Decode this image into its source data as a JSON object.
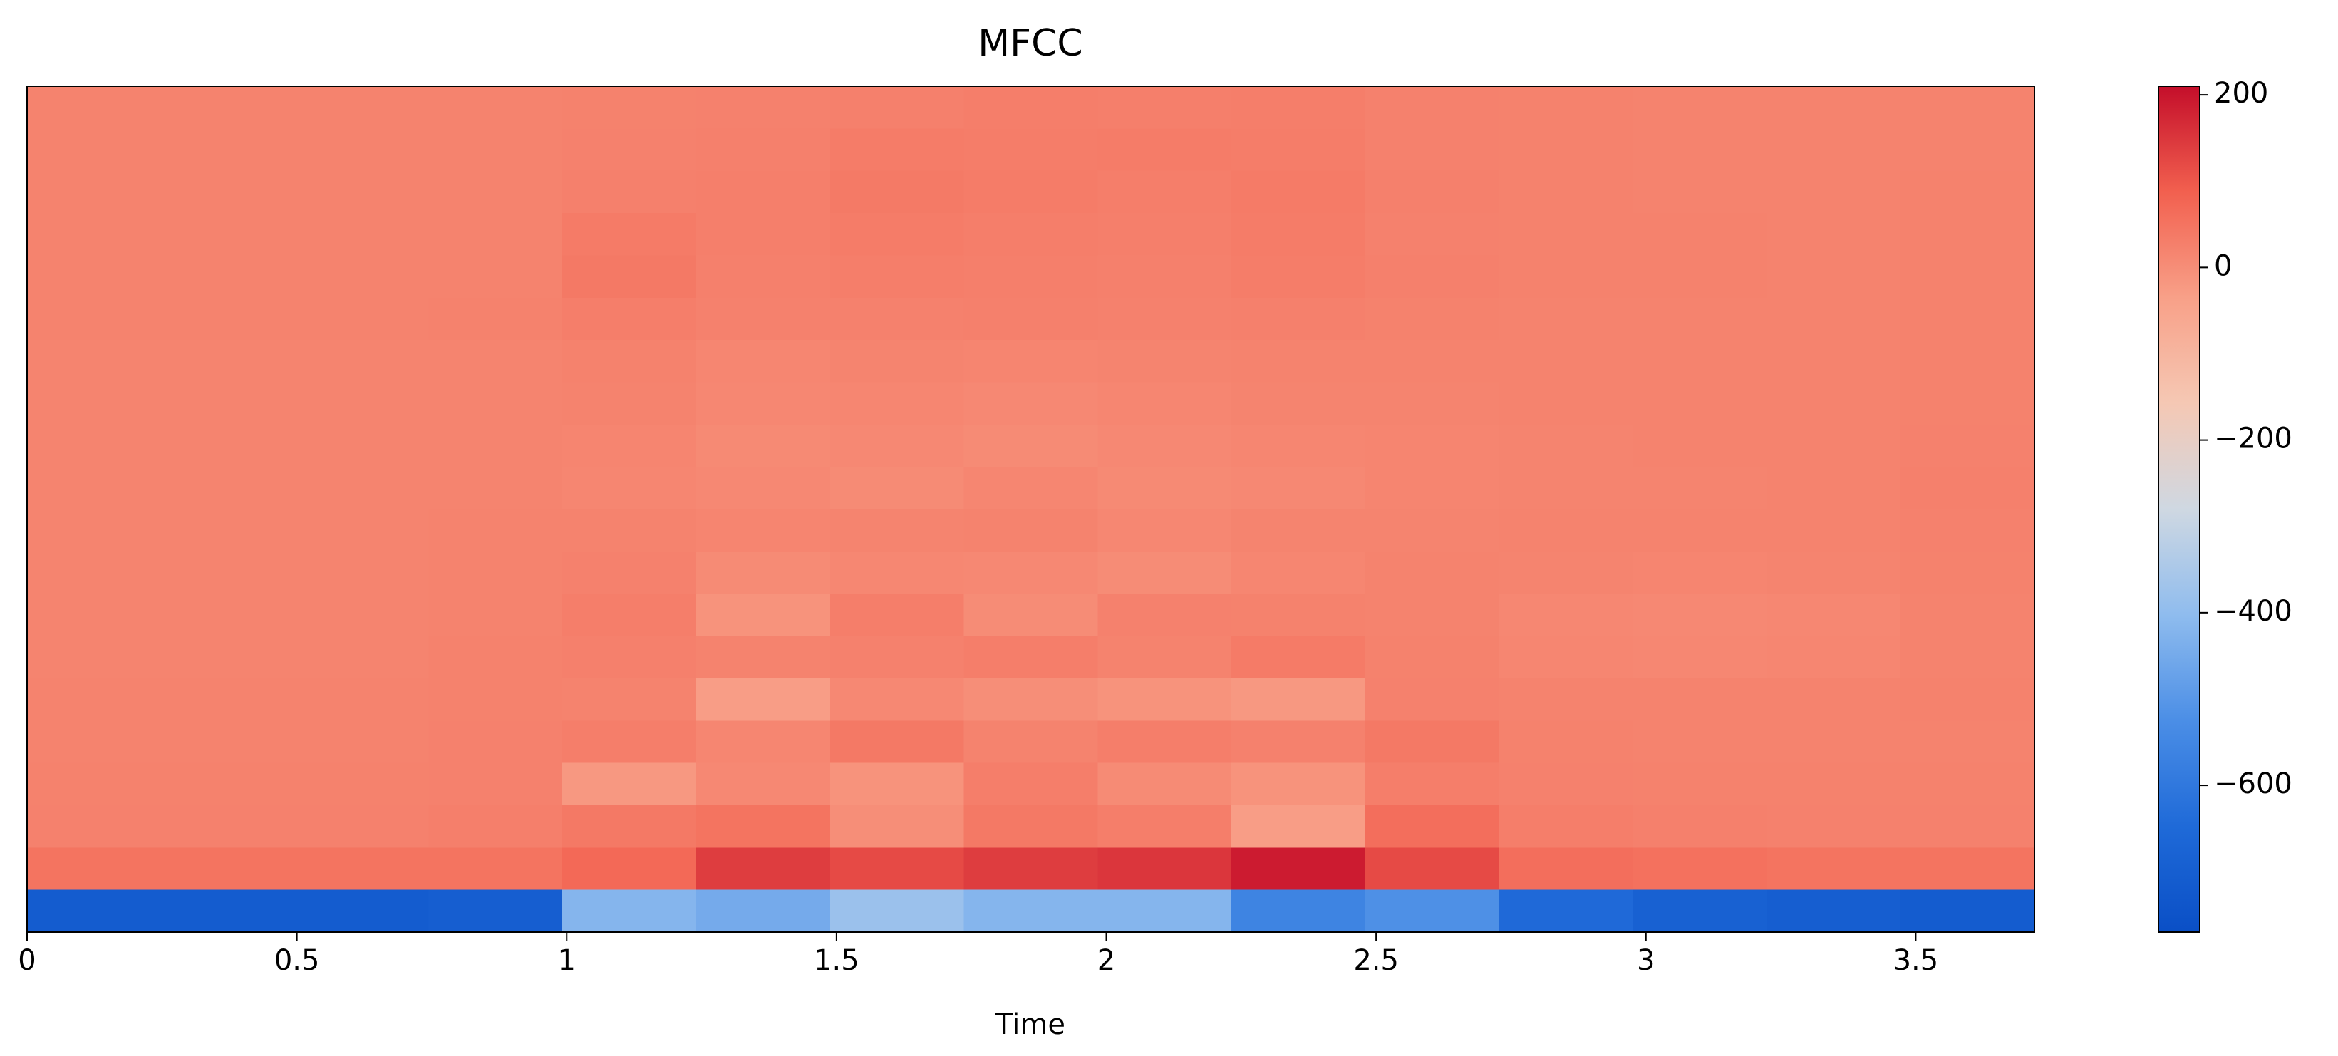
{
  "chart_data": {
    "type": "heatmap",
    "title": "MFCC",
    "x_label": "Time",
    "xlim": [
      0,
      3.72
    ],
    "xticks": [
      0,
      0.5,
      1,
      1.5,
      2,
      2.5,
      3,
      3.5
    ],
    "clim": [
      -770,
      210
    ],
    "colorbar_ticks": [
      {
        "value": -600,
        "label": "−600"
      },
      {
        "value": -400,
        "label": "−400"
      },
      {
        "value": -200,
        "label": "−200"
      },
      0,
      200
    ],
    "colormap": [
      "#0a4fc6",
      "#1f6ad8",
      "#4b8ee6",
      "#8fbcee",
      "#cfd8e2",
      "#f5c8b4",
      "#f8a088",
      "#f2604f",
      "#c40e2a"
    ],
    "values": [
      [
        20,
        20,
        20,
        20,
        22,
        24,
        26,
        30,
        28,
        30,
        24,
        22,
        20,
        20,
        20
      ],
      [
        20,
        20,
        20,
        20,
        24,
        26,
        34,
        32,
        34,
        32,
        24,
        22,
        20,
        20,
        20
      ],
      [
        20,
        20,
        20,
        20,
        26,
        28,
        38,
        34,
        30,
        36,
        26,
        22,
        20,
        20,
        22
      ],
      [
        20,
        20,
        20,
        20,
        36,
        28,
        34,
        30,
        28,
        34,
        24,
        22,
        22,
        20,
        22
      ],
      [
        20,
        20,
        20,
        20,
        40,
        26,
        30,
        28,
        26,
        32,
        26,
        22,
        22,
        20,
        22
      ],
      [
        20,
        20,
        20,
        22,
        30,
        24,
        24,
        26,
        24,
        26,
        22,
        20,
        20,
        20,
        22
      ],
      [
        18,
        18,
        18,
        18,
        22,
        14,
        18,
        16,
        18,
        20,
        20,
        20,
        20,
        20,
        22
      ],
      [
        18,
        18,
        18,
        18,
        20,
        12,
        14,
        10,
        14,
        18,
        18,
        20,
        20,
        20,
        22
      ],
      [
        18,
        18,
        18,
        18,
        16,
        8,
        10,
        6,
        10,
        14,
        16,
        18,
        20,
        20,
        24
      ],
      [
        18,
        18,
        18,
        18,
        14,
        10,
        6,
        14,
        8,
        10,
        16,
        18,
        18,
        20,
        26
      ],
      [
        18,
        18,
        18,
        20,
        20,
        16,
        18,
        20,
        12,
        18,
        18,
        20,
        20,
        20,
        24
      ],
      [
        18,
        18,
        18,
        20,
        24,
        6,
        12,
        10,
        4,
        14,
        20,
        18,
        16,
        18,
        22
      ],
      [
        18,
        18,
        18,
        20,
        30,
        -10,
        30,
        4,
        24,
        22,
        20,
        12,
        10,
        12,
        20
      ],
      [
        18,
        18,
        18,
        22,
        26,
        20,
        24,
        30,
        20,
        36,
        22,
        14,
        12,
        14,
        20
      ],
      [
        20,
        20,
        20,
        22,
        20,
        -30,
        10,
        0,
        -10,
        -20,
        24,
        20,
        20,
        20,
        22
      ],
      [
        20,
        20,
        20,
        24,
        30,
        14,
        40,
        20,
        30,
        24,
        40,
        22,
        20,
        20,
        20
      ],
      [
        22,
        22,
        22,
        24,
        -20,
        10,
        -10,
        30,
        6,
        -10,
        30,
        24,
        22,
        22,
        22
      ],
      [
        24,
        24,
        24,
        28,
        40,
        50,
        0,
        40,
        30,
        -30,
        60,
        30,
        26,
        24,
        24
      ],
      [
        50,
        50,
        50,
        50,
        70,
        140,
        120,
        140,
        150,
        190,
        120,
        60,
        55,
        50,
        50
      ],
      [
        -710,
        -710,
        -710,
        -700,
        -420,
        -450,
        -380,
        -420,
        -420,
        -560,
        -520,
        -650,
        -690,
        -700,
        -710
      ]
    ]
  }
}
